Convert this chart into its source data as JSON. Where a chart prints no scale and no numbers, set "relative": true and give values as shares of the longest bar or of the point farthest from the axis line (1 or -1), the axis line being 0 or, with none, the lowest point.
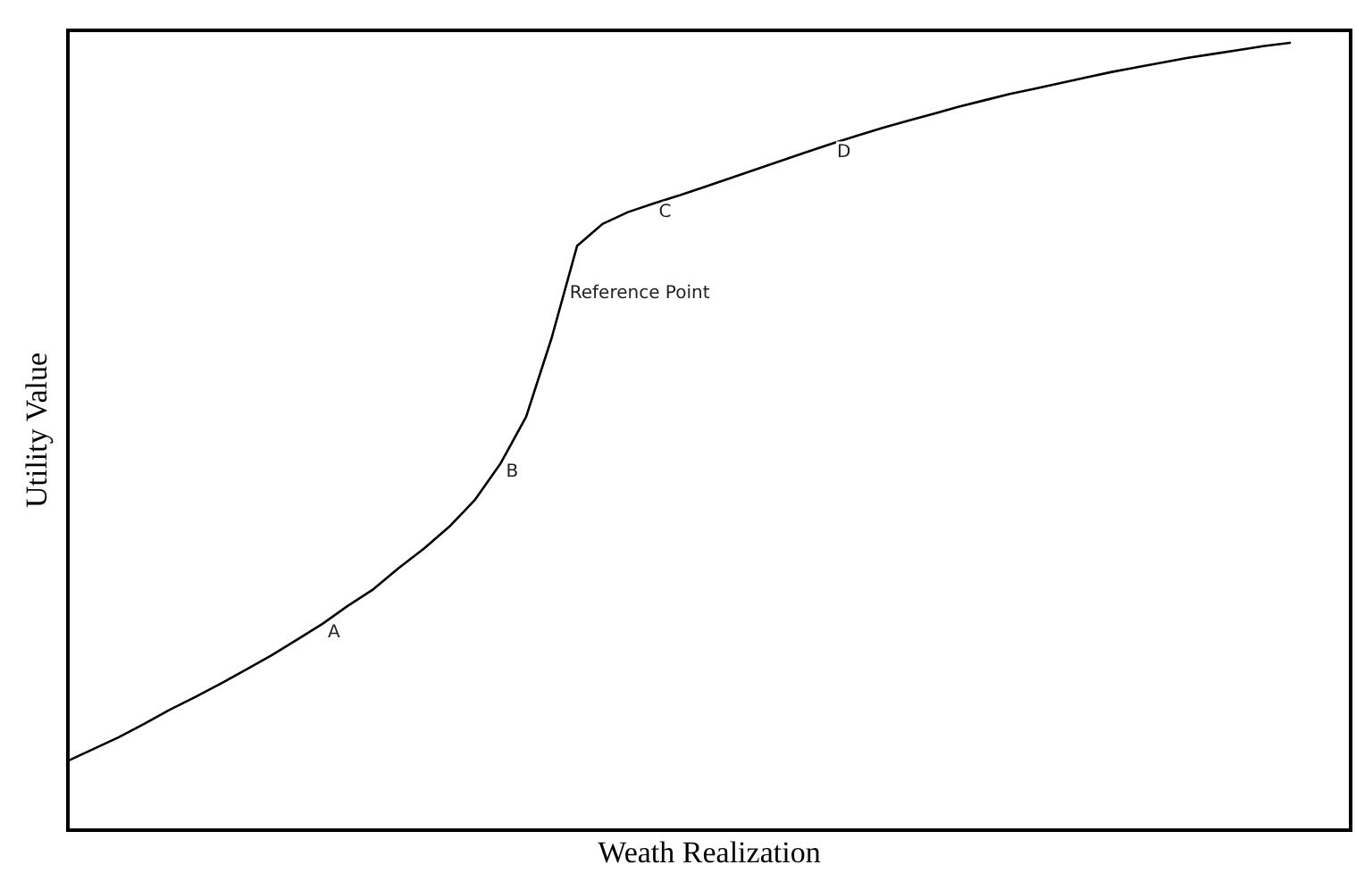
{
  "chart_data": {
    "type": "line",
    "xlabel": "Weath Realization",
    "ylabel": "Utility Value",
    "relative": true,
    "color": "#000000",
    "categories": [
      null,
      null,
      null,
      null,
      null,
      null,
      null,
      null,
      null,
      null,
      null,
      null,
      null,
      null,
      null,
      null,
      null,
      null,
      null,
      null,
      null,
      null,
      null,
      null,
      null,
      null,
      null,
      null,
      null,
      null,
      null,
      null,
      null,
      null,
      null,
      null,
      null,
      null,
      null,
      null,
      null,
      null,
      null,
      null,
      null,
      null,
      null,
      null,
      null
    ],
    "values": [
      0.088,
      0.103,
      0.118,
      0.135,
      0.153,
      0.169,
      0.186,
      0.204,
      0.222,
      0.242,
      0.262,
      0.285,
      0.306,
      0.333,
      0.358,
      0.386,
      0.42,
      0.466,
      0.525,
      0.625,
      0.742,
      0.77,
      0.785,
      0.796,
      0.806,
      0.817,
      0.828,
      0.839,
      0.85,
      0.861,
      0.872,
      0.882,
      0.892,
      0.901,
      0.91,
      0.919,
      0.927,
      0.935,
      0.942,
      0.949,
      0.956,
      0.963,
      0.969,
      0.975,
      0.981,
      0.986,
      0.991,
      0.996,
      1
    ],
    "annotations": [
      {
        "text": "A",
        "y": 0.262
      },
      {
        "text": "B",
        "y": 0.466
      },
      "Reference Point",
      {
        "text": "C",
        "y": 0.796
      },
      {
        "text": "D",
        "y": 0.872
      }
    ]
  }
}
